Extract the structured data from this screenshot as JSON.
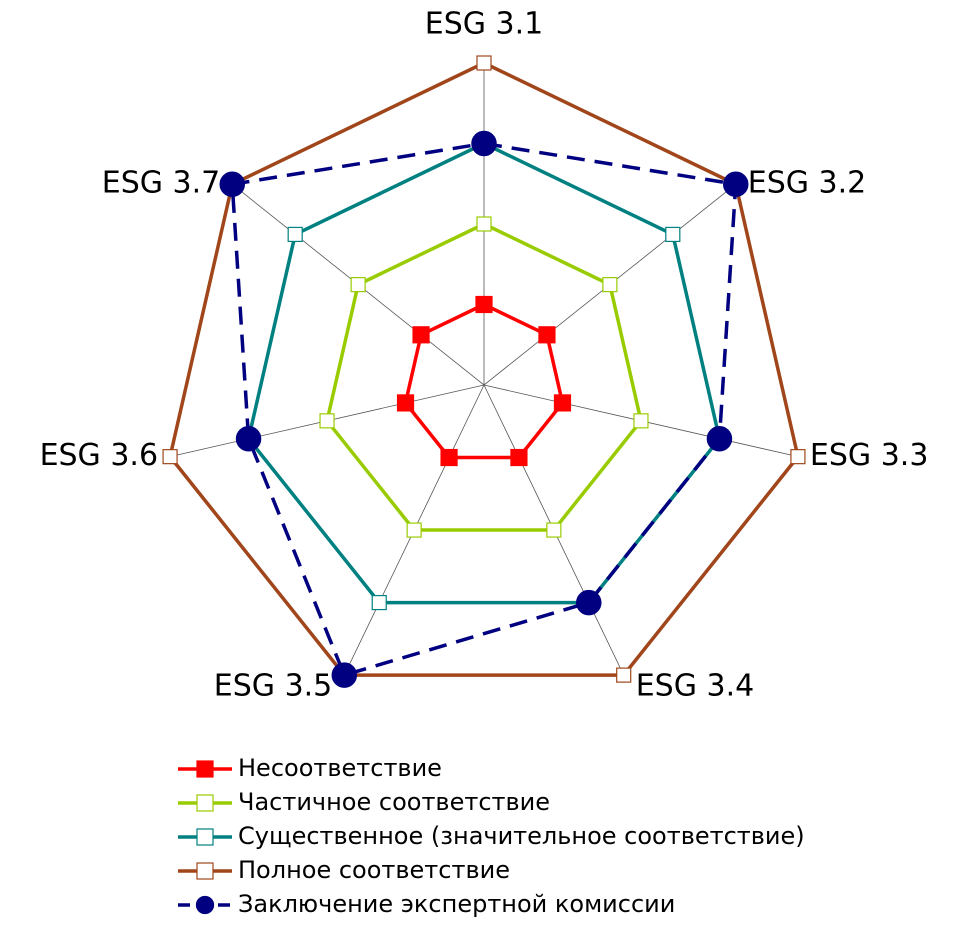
{
  "chart_data": {
    "type": "radar",
    "categories": [
      "ESG 3.1",
      "ESG 3.2",
      "ESG 3.3",
      "ESG 3.4",
      "ESG 3.5",
      "ESG 3.6",
      "ESG 3.7"
    ],
    "ylim": [
      0,
      4
    ],
    "legend": "bottom",
    "series": [
      {
        "name": "Несоответствие",
        "color": "#ff0000",
        "marker": "square",
        "filled": true,
        "dashed": false,
        "values": [
          1,
          1,
          1,
          1,
          1,
          1,
          1
        ]
      },
      {
        "name": "Частичное соответствие",
        "color": "#99cc00",
        "marker": "square",
        "filled": false,
        "dashed": false,
        "values": [
          2,
          2,
          2,
          2,
          2,
          2,
          2
        ]
      },
      {
        "name": "Существенное (значительное соответствие)",
        "color": "#008080",
        "marker": "square",
        "filled": false,
        "dashed": false,
        "values": [
          3,
          3,
          3,
          3,
          3,
          3,
          3
        ]
      },
      {
        "name": "Полное соответствие",
        "color": "#a0461a",
        "marker": "square",
        "filled": false,
        "dashed": false,
        "values": [
          4,
          4,
          4,
          4,
          4,
          4,
          4
        ]
      },
      {
        "name": "Заключение экспертной комиссии",
        "color": "#000080",
        "marker": "circle",
        "filled": true,
        "dashed": true,
        "values": [
          3,
          4,
          3,
          3,
          4,
          3,
          4
        ]
      }
    ]
  }
}
